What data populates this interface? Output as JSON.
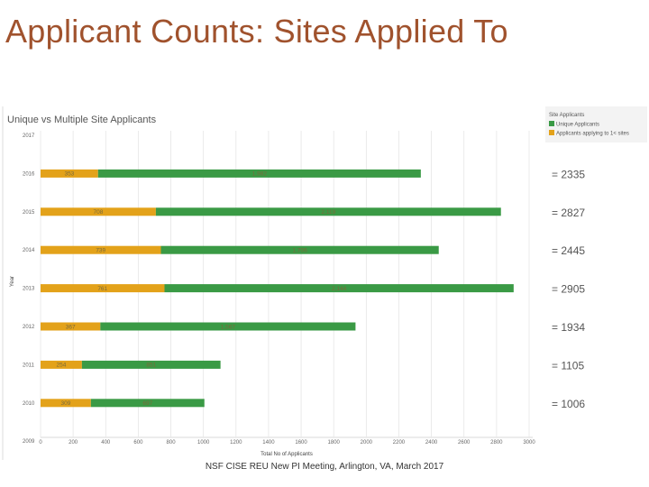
{
  "slide": {
    "title": "Applicant Counts: Sites Applied To",
    "footer": "NSF CISE REU New PI Meeting, Arlington, VA, March 2017"
  },
  "colors": {
    "title": "#a0522d",
    "unique": "#3a9a45",
    "multi": "#e3a21a"
  },
  "chart_data": {
    "type": "bar",
    "orientation": "horizontal",
    "stacked": true,
    "title": "Unique vs Multiple Site Applicants",
    "xlabel": "Total No of Applicants",
    "ylabel": "Year",
    "xlim": [
      0,
      3000
    ],
    "x_ticks": [
      "0",
      "200",
      "400",
      "600",
      "800",
      "1000",
      "1200",
      "1400",
      "1600",
      "1800",
      "2000",
      "2200",
      "2400",
      "2600",
      "2800",
      "3000"
    ],
    "grid": "vertical",
    "legend": {
      "title": "Site Applicants",
      "placement": "top-right"
    },
    "categories": [
      "2017",
      "2016",
      "2015",
      "2014",
      "2013",
      "2012",
      "2011",
      "2010",
      "2009"
    ],
    "series": [
      {
        "name": "Applicants applying to 1< sites",
        "color": "#e3a21a",
        "values": [
          null,
          353,
          708,
          739,
          761,
          367,
          254,
          309,
          null
        ],
        "labels": [
          "",
          "353",
          "708",
          "739",
          "761",
          "367",
          "254",
          "309",
          ""
        ]
      },
      {
        "name": "Unique Applicants",
        "color": "#3a9a45",
        "values": [
          null,
          1982,
          2119,
          1706,
          2144,
          1567,
          851,
          697,
          null
        ],
        "labels": [
          "",
          "1,982",
          "2,119",
          "1,706",
          "2,144",
          "1,567",
          "851",
          "697",
          ""
        ]
      }
    ],
    "totals": [
      "",
      "= 2335",
      "= 2827",
      "= 2445",
      "= 2905",
      "= 1934",
      "= 1105",
      "= 1006",
      ""
    ]
  }
}
